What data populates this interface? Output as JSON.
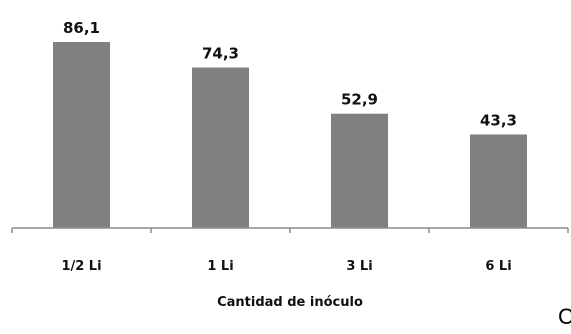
{
  "chart_data": {
    "type": "bar",
    "categories": [
      "1/2 Li",
      "1 Li",
      "3 Li",
      "6 Li"
    ],
    "values": [
      86.1,
      74.3,
      52.9,
      43.3
    ],
    "value_labels": [
      "86,1",
      "74,3",
      "52,9",
      "43,3"
    ],
    "title": "",
    "xlabel": "Cantidad de inóculo",
    "ylabel": "",
    "ylim": [
      0,
      100
    ],
    "grid": false,
    "legend": "none",
    "bar_color": "#808080",
    "axis_color": "#8c8c8c"
  },
  "corner_label": "C"
}
